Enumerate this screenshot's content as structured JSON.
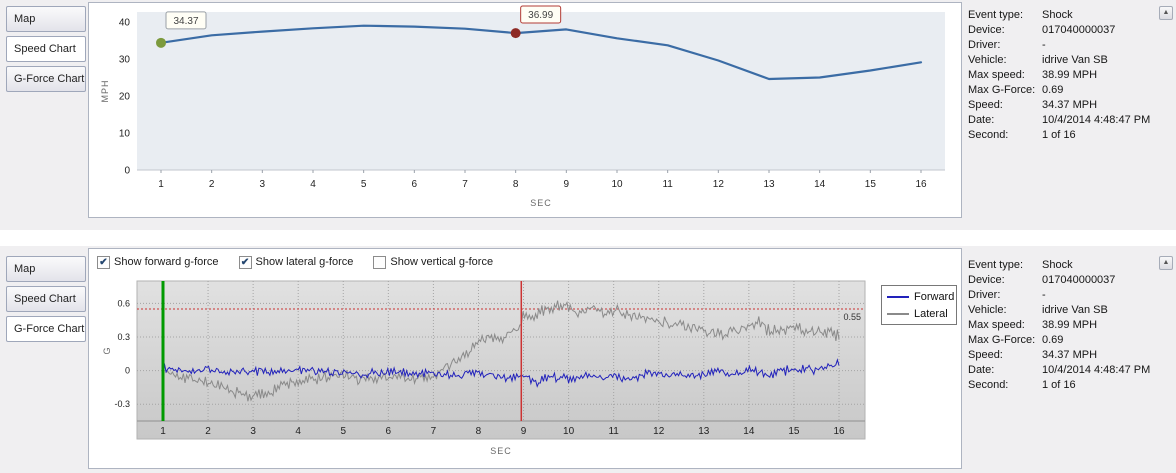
{
  "icons": {
    "scroll_up": "▲",
    "check": "✔"
  },
  "colors": {
    "speed_line": "#3b6ca5",
    "forward_blue": "#2222bb",
    "lateral_gray": "#8a8a8a",
    "marker_green": "#009a00",
    "marker_red": "#cc3333"
  },
  "panels": {
    "top": {
      "tabs": [
        {
          "id": "map",
          "label": "Map",
          "selected": false
        },
        {
          "id": "speed-chart",
          "label": "Speed Chart",
          "selected": true
        },
        {
          "id": "g-force-chart",
          "label": "G-Force Chart",
          "selected": false
        }
      ]
    },
    "bottom": {
      "tabs": [
        {
          "id": "map",
          "label": "Map",
          "selected": false
        },
        {
          "id": "speed-chart",
          "label": "Speed Chart",
          "selected": false
        },
        {
          "id": "g-force-chart",
          "label": "G-Force Chart",
          "selected": true
        }
      ],
      "checkboxes": [
        {
          "label": "Show forward g-force",
          "checked": true
        },
        {
          "label": "Show lateral g-force",
          "checked": true
        },
        {
          "label": "Show vertical g-force",
          "checked": false
        }
      ]
    }
  },
  "event_details": {
    "rows": [
      {
        "label": "Event type:",
        "value": "Shock"
      },
      {
        "label": "Device:",
        "value": "017040000037"
      },
      {
        "label": "Driver:",
        "value": "-"
      },
      {
        "label": "Vehicle:",
        "value": "idrive Van SB"
      },
      {
        "label": "Max speed:",
        "value": "38.99 MPH"
      },
      {
        "label": "Max G-Force:",
        "value": "0.69"
      },
      {
        "label": "Speed:",
        "value": "34.37 MPH"
      },
      {
        "label": "Date:",
        "value": "10/4/2014 4:48:47 PM"
      },
      {
        "label": "Second:",
        "value": "1 of 16"
      }
    ]
  },
  "chart_data": [
    {
      "id": "speed",
      "type": "line",
      "title": "Speed Chart",
      "xlabel": "SEC",
      "ylabel": "MPH",
      "x": [
        1,
        2,
        3,
        4,
        5,
        6,
        7,
        8,
        9,
        10,
        11,
        12,
        13,
        14,
        15,
        16
      ],
      "values": [
        34.37,
        36.4,
        37.4,
        38.3,
        38.99,
        38.75,
        38.2,
        36.99,
        38.0,
        35.6,
        33.7,
        29.6,
        24.6,
        25.0,
        26.9,
        29.1
      ],
      "ylim": [
        0,
        40
      ],
      "yticks": [
        0,
        10,
        20,
        30,
        40
      ],
      "xlim": [
        1,
        16
      ],
      "grid": false,
      "line_color": "#3b6ca5",
      "plot_bg": "#e9edf2",
      "annotations": [
        {
          "x": 1,
          "value": 34.37,
          "label": "34.37",
          "dot_color": "#7c9a3d",
          "box_border": "#9aa0a6"
        },
        {
          "x": 8,
          "value": 36.99,
          "label": "36.99",
          "dot_color": "#8e2a25",
          "box_border": "#b23b35"
        }
      ]
    },
    {
      "id": "gforce",
      "type": "line",
      "title": "G-Force Chart",
      "xlabel": "SEC",
      "ylabel": "G",
      "ylim": [
        -0.45,
        0.8
      ],
      "yticks": [
        0.6,
        0.3,
        0,
        -0.3
      ],
      "xticks": [
        1,
        2,
        3,
        4,
        5,
        6,
        7,
        8,
        9,
        10,
        11,
        12,
        13,
        14,
        15,
        16
      ],
      "xlim": [
        1,
        16
      ],
      "grid": true,
      "legend_position": "right",
      "threshold": {
        "value": 0.55,
        "label": "0.55",
        "color": "#cc3333"
      },
      "marker_lines": [
        {
          "x": 1,
          "color": "#009a00",
          "width": 3
        },
        {
          "x": 8.95,
          "color": "#cc3333",
          "width": 1.5
        }
      ],
      "series": [
        {
          "name": "Forward",
          "color": "#2222bb",
          "noise": 0.03,
          "seed": 42,
          "waypoints": [
            [
              1,
              0.02
            ],
            [
              1.5,
              0
            ],
            [
              2,
              0.01
            ],
            [
              2.5,
              -0.02
            ],
            [
              3,
              0
            ],
            [
              3.5,
              -0.01
            ],
            [
              4,
              0.01
            ],
            [
              4.5,
              -0.02
            ],
            [
              5,
              -0.01
            ],
            [
              5.5,
              -0.03
            ],
            [
              6,
              -0.01
            ],
            [
              6.5,
              -0.03
            ],
            [
              7,
              -0.02
            ],
            [
              7.5,
              -0.04
            ],
            [
              8,
              -0.02
            ],
            [
              8.5,
              -0.06
            ],
            [
              9,
              -0.05
            ],
            [
              9.3,
              -0.1
            ],
            [
              9.6,
              -0.04
            ],
            [
              10,
              -0.09
            ],
            [
              10.4,
              -0.04
            ],
            [
              10.8,
              -0.08
            ],
            [
              11,
              -0.05
            ],
            [
              11.4,
              -0.07
            ],
            [
              11.8,
              -0.03
            ],
            [
              12,
              -0.05
            ],
            [
              12.5,
              -0.03
            ],
            [
              13,
              -0.05
            ],
            [
              13.3,
              0
            ],
            [
              13.6,
              -0.04
            ],
            [
              14,
              0.02
            ],
            [
              14.4,
              -0.03
            ],
            [
              14.8,
              0
            ],
            [
              15,
              0.02
            ],
            [
              15.4,
              0
            ],
            [
              15.7,
              0.04
            ],
            [
              16,
              0.06
            ]
          ]
        },
        {
          "name": "Lateral",
          "color": "#8a8a8a",
          "noise": 0.04,
          "seed": 7,
          "waypoints": [
            [
              1,
              0
            ],
            [
              1.3,
              -0.03
            ],
            [
              1.7,
              -0.08
            ],
            [
              2,
              -0.1
            ],
            [
              2.3,
              -0.16
            ],
            [
              2.6,
              -0.2
            ],
            [
              3,
              -0.23
            ],
            [
              3.3,
              -0.2
            ],
            [
              3.6,
              -0.14
            ],
            [
              4,
              -0.1
            ],
            [
              4.3,
              -0.08
            ],
            [
              4.6,
              -0.06
            ],
            [
              5,
              -0.04
            ],
            [
              5.3,
              -0.08
            ],
            [
              5.6,
              -0.06
            ],
            [
              6,
              -0.07
            ],
            [
              6.3,
              -0.05
            ],
            [
              6.6,
              -0.08
            ],
            [
              7,
              -0.05
            ],
            [
              7.2,
              0
            ],
            [
              7.5,
              0.08
            ],
            [
              7.8,
              0.18
            ],
            [
              8,
              0.25
            ],
            [
              8.2,
              0.28
            ],
            [
              8.5,
              0.3
            ],
            [
              8.8,
              0.35
            ],
            [
              9,
              0.48
            ],
            [
              9.2,
              0.5
            ],
            [
              9.5,
              0.53
            ],
            [
              9.7,
              0.58
            ],
            [
              9.9,
              0.6
            ],
            [
              10,
              0.55
            ],
            [
              10.2,
              0.5
            ],
            [
              10.5,
              0.55
            ],
            [
              10.8,
              0.52
            ],
            [
              11,
              0.55
            ],
            [
              11.3,
              0.5
            ],
            [
              11.6,
              0.47
            ],
            [
              12,
              0.44
            ],
            [
              12.3,
              0.42
            ],
            [
              12.6,
              0.4
            ],
            [
              13,
              0.36
            ],
            [
              13.4,
              0.33
            ],
            [
              13.7,
              0.35
            ],
            [
              14,
              0.4
            ],
            [
              14.2,
              0.44
            ],
            [
              14.5,
              0.34
            ],
            [
              14.8,
              0.38
            ],
            [
              15,
              0.4
            ],
            [
              15.3,
              0.35
            ],
            [
              15.6,
              0.36
            ],
            [
              16,
              0.31
            ]
          ]
        }
      ]
    }
  ]
}
